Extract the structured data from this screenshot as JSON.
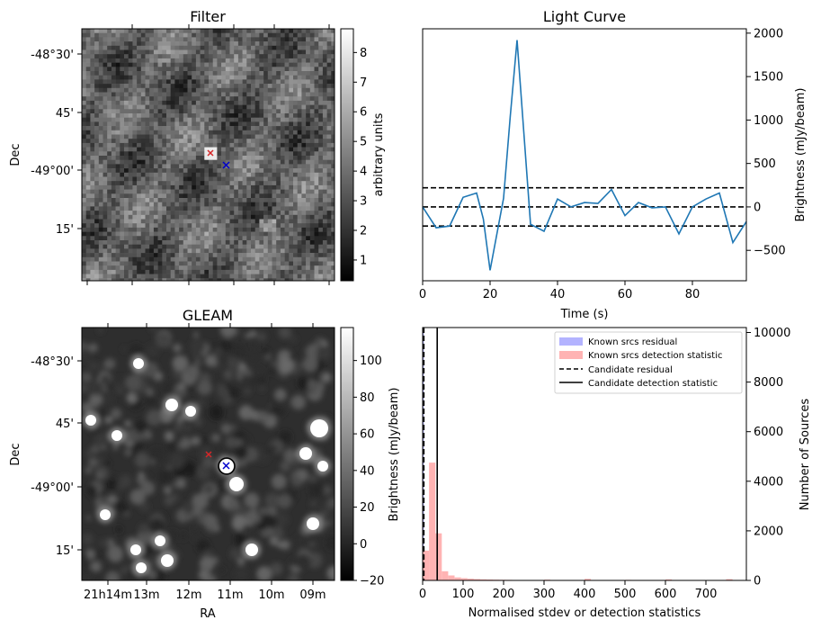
{
  "panels": {
    "filter": {
      "title": "Filter",
      "ylabel": "Dec",
      "dec_ticks": [
        "-48°30'",
        "45'",
        "-49°00'",
        "15'"
      ],
      "colorbar": {
        "label": "arbitrary units",
        "ticks": [
          "1",
          "2",
          "3",
          "4",
          "5",
          "6",
          "7",
          "8"
        ],
        "range": [
          0.3,
          8.8
        ]
      },
      "colormap": "gray",
      "markers": [
        {
          "name": "candidate-red",
          "color": "#d62728",
          "symbol": "x"
        },
        {
          "name": "candidate-blue",
          "color": "#0000cc",
          "symbol": "x"
        }
      ]
    },
    "gleam": {
      "title": "GLEAM",
      "xlabel": "RA",
      "ylabel": "Dec",
      "ra_ticks": [
        "21h14m",
        "13m",
        "12m",
        "11m",
        "10m",
        "09m"
      ],
      "dec_ticks": [
        "-48°30'",
        "45'",
        "-49°00'",
        "15'"
      ],
      "colorbar": {
        "label": "Brightness (mJy/beam)",
        "ticks": [
          "−20",
          "0",
          "20",
          "40",
          "60",
          "80",
          "100"
        ],
        "range": [
          -20,
          118
        ]
      },
      "colormap": "gray",
      "markers": [
        {
          "name": "candidate-red",
          "color": "#d62728",
          "symbol": "x"
        },
        {
          "name": "candidate-blue",
          "color": "#0000cc",
          "symbol": "x"
        }
      ]
    }
  },
  "chart_data": [
    {
      "type": "line",
      "title": "Light Curve",
      "xlabel": "Time (s)",
      "ylabel": "Brightness (mJy/beam)",
      "xlim": [
        0,
        96
      ],
      "ylim": [
        -850,
        2050
      ],
      "xticks": [
        0,
        20,
        40,
        60,
        80
      ],
      "yticks": [
        -500,
        0,
        500,
        1000,
        1500,
        2000
      ],
      "grid": false,
      "series": [
        {
          "color": "#1f77b4",
          "x": [
            0,
            4,
            8,
            12,
            16,
            18,
            20,
            24,
            26,
            28,
            32,
            36,
            40,
            44,
            48,
            52,
            56,
            60,
            64,
            68,
            72,
            76,
            80,
            84,
            88,
            92,
            96
          ],
          "y": [
            0,
            -240,
            -220,
            110,
            160,
            -140,
            -730,
            100,
            1050,
            1920,
            -200,
            -280,
            90,
            0,
            50,
            40,
            200,
            -100,
            50,
            -10,
            0,
            -310,
            0,
            90,
            160,
            -410,
            -170
          ]
        }
      ],
      "hlines": [
        {
          "y": 220,
          "style": "dashed",
          "color": "#000000"
        },
        {
          "y": 0,
          "style": "dashed",
          "color": "#000000"
        },
        {
          "y": -220,
          "style": "dashed",
          "color": "#000000"
        }
      ]
    },
    {
      "type": "bar",
      "xlabel": "Normalised stdev or detection statistics",
      "ylabel": "Number of Sources",
      "ylabel_left": "Brightness (mJy/beam)",
      "xlim": [
        0,
        800
      ],
      "ylim": [
        0,
        10200
      ],
      "xticks": [
        0,
        100,
        200,
        300,
        400,
        500,
        600,
        700
      ],
      "yticks": [
        0,
        2000,
        4000,
        6000,
        8000,
        10000
      ],
      "legend_position": "top-right",
      "legend": [
        {
          "label": "Known srcs residual",
          "kind": "patch",
          "color": "#b3b3ff"
        },
        {
          "label": "Known srcs detection statistic",
          "kind": "patch",
          "color": "#ffb3b3"
        },
        {
          "label": "Candidate residual",
          "kind": "dashed",
          "color": "#000000"
        },
        {
          "label": "Candidate detection statistic",
          "kind": "solid",
          "color": "#000000"
        }
      ],
      "series": [
        {
          "name": "Known srcs residual",
          "color": "#b3b3ff",
          "bin_width": 3,
          "bins_start": [
            0,
            3
          ],
          "values": [
            10100,
            300
          ]
        },
        {
          "name": "Known srcs detection statistic",
          "color": "#ffb3b3",
          "bin_width": 15.8,
          "bins_start": [
            0,
            15.8,
            31.6,
            47.4,
            63.2,
            79,
            94.8,
            110.6,
            126.4,
            142.2,
            158,
            173.8,
            189.6,
            205.4,
            221.2,
            237,
            300,
            400,
            500,
            600,
            700,
            750
          ],
          "values": [
            1200,
            4750,
            1900,
            370,
            200,
            120,
            90,
            70,
            55,
            45,
            35,
            30,
            25,
            20,
            18,
            15,
            30,
            60,
            20,
            40,
            10,
            50
          ]
        }
      ],
      "vlines": [
        {
          "x": 3,
          "style": "dashed",
          "label": "Candidate residual"
        },
        {
          "x": 36,
          "style": "solid",
          "label": "Candidate detection statistic"
        }
      ]
    }
  ]
}
